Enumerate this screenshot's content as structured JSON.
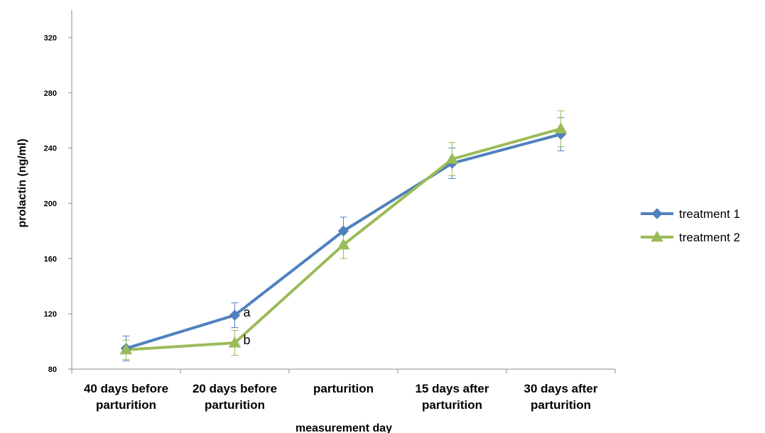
{
  "chart_data": {
    "type": "line",
    "title": "",
    "xlabel": "measurement day",
    "ylabel": "prolactin (ng/ml)",
    "categories": [
      [
        "40 days before",
        "parturition"
      ],
      [
        "20 days before",
        "parturition"
      ],
      [
        "parturition"
      ],
      [
        "15 days after",
        "parturition"
      ],
      [
        "30 days after",
        "parturition"
      ]
    ],
    "y_ticks": [
      80,
      120,
      160,
      200,
      240,
      280,
      320
    ],
    "ylim": [
      80,
      340
    ],
    "grid": false,
    "legend_position": "right",
    "series": [
      {
        "name": "treatment 1",
        "color": "#4f81bd",
        "marker": "diamond",
        "values": [
          95,
          119,
          180,
          229,
          250
        ],
        "error": [
          9,
          9,
          10,
          11,
          12
        ]
      },
      {
        "name": "treatment 2",
        "color": "#9bbb59",
        "marker": "triangle",
        "values": [
          94,
          99,
          170,
          232,
          254
        ],
        "error": [
          7,
          9,
          10,
          12,
          13
        ]
      }
    ],
    "annotations": [
      {
        "text": "a",
        "series": 0,
        "index": 1
      },
      {
        "text": "b",
        "series": 1,
        "index": 1
      }
    ]
  }
}
